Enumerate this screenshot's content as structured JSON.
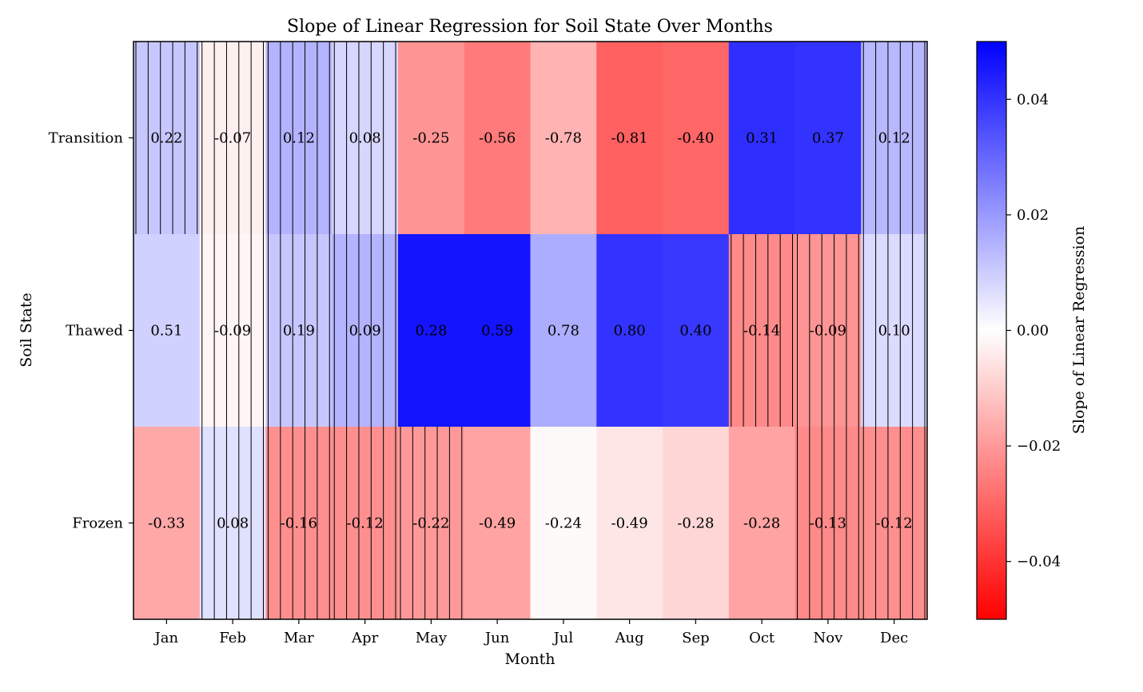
{
  "chart_data": {
    "type": "heatmap",
    "title": "Slope of Linear Regression for Soil State Over Months",
    "xlabel": "Month",
    "ylabel": "Soil State",
    "x_categories": [
      "Jan",
      "Feb",
      "Mar",
      "Apr",
      "May",
      "Jun",
      "Jul",
      "Aug",
      "Sep",
      "Oct",
      "Nov",
      "Dec"
    ],
    "y_categories": [
      "Transition",
      "Thawed",
      "Frozen"
    ],
    "annotations": [
      [
        "0.22",
        "-0.07",
        "0.12",
        "0.08",
        "-0.25",
        "-0.56",
        "-0.78",
        "-0.81",
        "-0.40",
        "0.31",
        "0.37",
        "0.12"
      ],
      [
        "0.51",
        "-0.09",
        "0.19",
        "0.09",
        "0.28",
        "0.59",
        "0.78",
        "0.80",
        "0.40",
        "-0.14",
        "-0.09",
        "0.10"
      ],
      [
        "-0.33",
        "0.08",
        "-0.16",
        "-0.12",
        "-0.22",
        "-0.49",
        "-0.24",
        "-0.49",
        "-0.28",
        "-0.28",
        "-0.13",
        "-0.12"
      ]
    ],
    "slopes": [
      [
        0.011,
        -0.003,
        0.015,
        0.008,
        -0.021,
        -0.026,
        -0.015,
        -0.031,
        -0.03,
        0.041,
        0.04,
        0.014
      ],
      [
        0.009,
        -0.002,
        0.011,
        0.015,
        0.046,
        0.046,
        0.016,
        0.04,
        0.039,
        -0.023,
        -0.021,
        0.007
      ],
      [
        -0.017,
        0.006,
        -0.022,
        -0.022,
        -0.02,
        -0.018,
        -0.001,
        -0.005,
        -0.008,
        -0.018,
        -0.023,
        -0.022
      ]
    ],
    "hatched": [
      [
        true,
        true,
        true,
        true,
        false,
        false,
        false,
        false,
        false,
        false,
        false,
        true
      ],
      [
        false,
        true,
        true,
        true,
        false,
        false,
        false,
        false,
        false,
        true,
        true,
        true
      ],
      [
        false,
        true,
        true,
        true,
        true,
        false,
        false,
        false,
        false,
        false,
        true,
        true
      ]
    ],
    "colorbar": {
      "label": "Slope of Linear Regression",
      "range": [
        -0.05,
        0.05
      ],
      "ticks": [
        0.04,
        0.02,
        0.0,
        -0.02,
        -0.04
      ],
      "tick_labels": [
        "0.04",
        "0.02",
        "0.00",
        "−0.02",
        "−0.04"
      ],
      "colormap": "bwr",
      "color_low": "#ff0000",
      "color_mid": "#ffffff",
      "color_high": "#0000ff"
    }
  }
}
